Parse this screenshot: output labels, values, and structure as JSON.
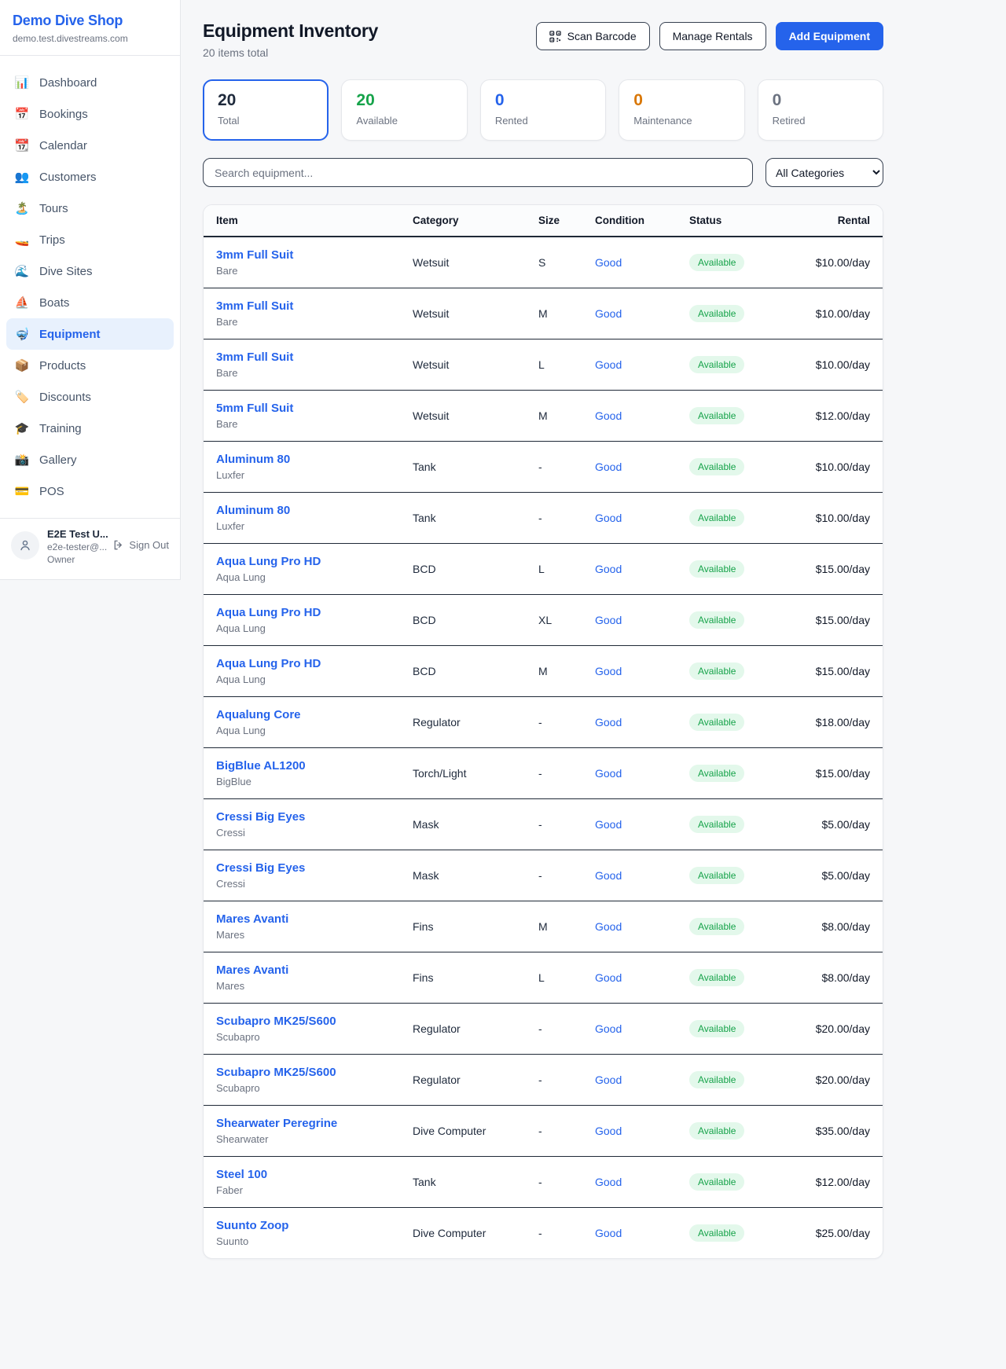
{
  "sidebar": {
    "brand": {
      "name": "Demo Dive Shop",
      "domain": "demo.test.divestreams.com"
    },
    "nav": [
      {
        "icon": "📊",
        "icon_name": "dashboard-icon",
        "label": "Dashboard",
        "active": false
      },
      {
        "icon": "📅",
        "icon_name": "bookings-icon",
        "label": "Bookings",
        "active": false
      },
      {
        "icon": "📆",
        "icon_name": "calendar-icon",
        "label": "Calendar",
        "active": false
      },
      {
        "icon": "👥",
        "icon_name": "customers-icon",
        "label": "Customers",
        "active": false
      },
      {
        "icon": "🏝️",
        "icon_name": "tours-icon",
        "label": "Tours",
        "active": false
      },
      {
        "icon": "🚤",
        "icon_name": "trips-icon",
        "label": "Trips",
        "active": false
      },
      {
        "icon": "🌊",
        "icon_name": "dive-sites-icon",
        "label": "Dive Sites",
        "active": false
      },
      {
        "icon": "⛵",
        "icon_name": "boats-icon",
        "label": "Boats",
        "active": false
      },
      {
        "icon": "🤿",
        "icon_name": "equipment-icon",
        "label": "Equipment",
        "active": true
      },
      {
        "icon": "📦",
        "icon_name": "products-icon",
        "label": "Products",
        "active": false
      },
      {
        "icon": "🏷️",
        "icon_name": "discounts-icon",
        "label": "Discounts",
        "active": false
      },
      {
        "icon": "🎓",
        "icon_name": "training-icon",
        "label": "Training",
        "active": false
      },
      {
        "icon": "📸",
        "icon_name": "gallery-icon",
        "label": "Gallery",
        "active": false
      },
      {
        "icon": "💳",
        "icon_name": "pos-icon",
        "label": "POS",
        "active": false
      }
    ],
    "user": {
      "name": "E2E Test U...",
      "email": "e2e-tester@...",
      "role": "Owner",
      "sign_out_label": "Sign Out"
    }
  },
  "header": {
    "title": "Equipment Inventory",
    "subtitle": "20 items total",
    "buttons": {
      "scan_barcode": "Scan Barcode",
      "manage_rentals": "Manage Rentals",
      "add_equipment": "Add Equipment"
    }
  },
  "stats": [
    {
      "value": "20",
      "label": "Total",
      "value_color": "#1e293b",
      "selected": true
    },
    {
      "value": "20",
      "label": "Available",
      "value_color": "#16a34a",
      "selected": false
    },
    {
      "value": "0",
      "label": "Rented",
      "value_color": "#2563eb",
      "selected": false
    },
    {
      "value": "0",
      "label": "Maintenance",
      "value_color": "#d97706",
      "selected": false
    },
    {
      "value": "0",
      "label": "Retired",
      "value_color": "#6b7280",
      "selected": false
    }
  ],
  "filters": {
    "search_placeholder": "Search equipment...",
    "category_selected": "All Categories"
  },
  "table": {
    "columns": [
      "Item",
      "Category",
      "Size",
      "Condition",
      "Status",
      "Rental"
    ],
    "rows": [
      {
        "name": "3mm Full Suit",
        "brand": "Bare",
        "category": "Wetsuit",
        "size": "S",
        "condition": "Good",
        "status": "Available",
        "rental": "$10.00/day"
      },
      {
        "name": "3mm Full Suit",
        "brand": "Bare",
        "category": "Wetsuit",
        "size": "M",
        "condition": "Good",
        "status": "Available",
        "rental": "$10.00/day"
      },
      {
        "name": "3mm Full Suit",
        "brand": "Bare",
        "category": "Wetsuit",
        "size": "L",
        "condition": "Good",
        "status": "Available",
        "rental": "$10.00/day"
      },
      {
        "name": "5mm Full Suit",
        "brand": "Bare",
        "category": "Wetsuit",
        "size": "M",
        "condition": "Good",
        "status": "Available",
        "rental": "$12.00/day"
      },
      {
        "name": "Aluminum 80",
        "brand": "Luxfer",
        "category": "Tank",
        "size": "-",
        "condition": "Good",
        "status": "Available",
        "rental": "$10.00/day"
      },
      {
        "name": "Aluminum 80",
        "brand": "Luxfer",
        "category": "Tank",
        "size": "-",
        "condition": "Good",
        "status": "Available",
        "rental": "$10.00/day"
      },
      {
        "name": "Aqua Lung Pro HD",
        "brand": "Aqua Lung",
        "category": "BCD",
        "size": "L",
        "condition": "Good",
        "status": "Available",
        "rental": "$15.00/day"
      },
      {
        "name": "Aqua Lung Pro HD",
        "brand": "Aqua Lung",
        "category": "BCD",
        "size": "XL",
        "condition": "Good",
        "status": "Available",
        "rental": "$15.00/day"
      },
      {
        "name": "Aqua Lung Pro HD",
        "brand": "Aqua Lung",
        "category": "BCD",
        "size": "M",
        "condition": "Good",
        "status": "Available",
        "rental": "$15.00/day"
      },
      {
        "name": "Aqualung Core",
        "brand": "Aqua Lung",
        "category": "Regulator",
        "size": "-",
        "condition": "Good",
        "status": "Available",
        "rental": "$18.00/day"
      },
      {
        "name": "BigBlue AL1200",
        "brand": "BigBlue",
        "category": "Torch/Light",
        "size": "-",
        "condition": "Good",
        "status": "Available",
        "rental": "$15.00/day"
      },
      {
        "name": "Cressi Big Eyes",
        "brand": "Cressi",
        "category": "Mask",
        "size": "-",
        "condition": "Good",
        "status": "Available",
        "rental": "$5.00/day"
      },
      {
        "name": "Cressi Big Eyes",
        "brand": "Cressi",
        "category": "Mask",
        "size": "-",
        "condition": "Good",
        "status": "Available",
        "rental": "$5.00/day"
      },
      {
        "name": "Mares Avanti",
        "brand": "Mares",
        "category": "Fins",
        "size": "M",
        "condition": "Good",
        "status": "Available",
        "rental": "$8.00/day"
      },
      {
        "name": "Mares Avanti",
        "brand": "Mares",
        "category": "Fins",
        "size": "L",
        "condition": "Good",
        "status": "Available",
        "rental": "$8.00/day"
      },
      {
        "name": "Scubapro MK25/S600",
        "brand": "Scubapro",
        "category": "Regulator",
        "size": "-",
        "condition": "Good",
        "status": "Available",
        "rental": "$20.00/day"
      },
      {
        "name": "Scubapro MK25/S600",
        "brand": "Scubapro",
        "category": "Regulator",
        "size": "-",
        "condition": "Good",
        "status": "Available",
        "rental": "$20.00/day"
      },
      {
        "name": "Shearwater Peregrine",
        "brand": "Shearwater",
        "category": "Dive Computer",
        "size": "-",
        "condition": "Good",
        "status": "Available",
        "rental": "$35.00/day"
      },
      {
        "name": "Steel 100",
        "brand": "Faber",
        "category": "Tank",
        "size": "-",
        "condition": "Good",
        "status": "Available",
        "rental": "$12.00/day"
      },
      {
        "name": "Suunto Zoop",
        "brand": "Suunto",
        "category": "Dive Computer",
        "size": "-",
        "condition": "Good",
        "status": "Available",
        "rental": "$25.00/day"
      }
    ]
  },
  "colors": {
    "accent_blue": "#2563eb",
    "green": "#16a34a",
    "green_badge_bg": "#e3f8eb",
    "orange": "#d97706",
    "gray": "#6b7280",
    "dark": "#1e293b"
  }
}
